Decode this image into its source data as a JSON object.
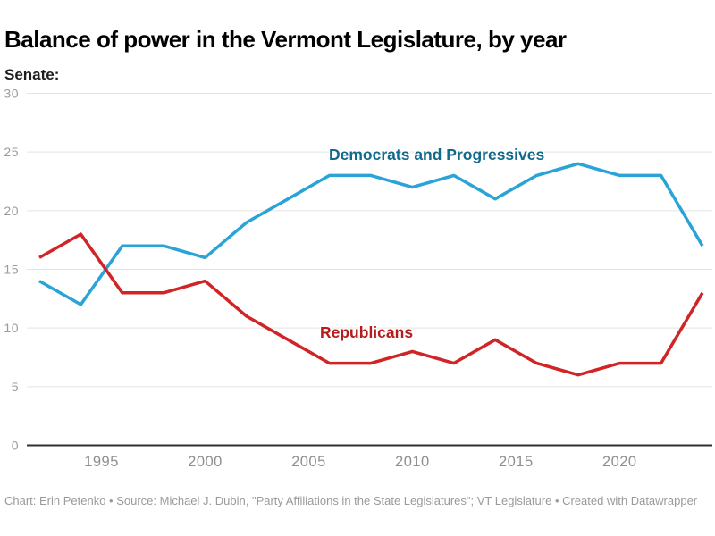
{
  "header": {
    "title": "Balance of power in the Vermont Legislature, by year",
    "subtitle": "Senate:"
  },
  "footer": {
    "attribution": "Chart: Erin Petenko • Source: Michael J. Dubin, \"Party Affiliations in the State Legislatures\"; VT Legislature • Created with Datawrapper"
  },
  "chart_data": {
    "type": "line",
    "title": "Balance of power in the Vermont Legislature, by year",
    "subtitle": "Senate:",
    "x": [
      1992,
      1994,
      1996,
      1998,
      2000,
      2002,
      2004,
      2006,
      2008,
      2010,
      2012,
      2014,
      2016,
      2018,
      2020,
      2022,
      2024
    ],
    "series": [
      {
        "name": "Democrats and Progressives",
        "values": [
          14,
          12,
          17,
          17,
          16,
          19,
          21,
          23,
          23,
          22,
          23,
          21,
          23,
          24,
          23,
          23,
          17
        ],
        "color": "#2aa3d7",
        "label_color": "#116a8c"
      },
      {
        "name": "Republicans",
        "values": [
          16,
          18,
          13,
          13,
          14,
          11,
          9,
          7,
          7,
          8,
          7,
          9,
          7,
          6,
          7,
          7,
          13
        ],
        "color": "#d02426",
        "label_color": "#b51c1c"
      }
    ],
    "x_ticks": [
      "1995",
      "2000",
      "2005",
      "2010",
      "2015",
      "2020"
    ],
    "y_ticks": [
      "0",
      "5",
      "10",
      "15",
      "20",
      "25",
      "30"
    ],
    "x_domain": [
      1992,
      2024
    ],
    "y_domain": [
      0,
      30
    ],
    "ylim": [
      0,
      30
    ],
    "grid": "horizontal",
    "legend_position": "inline-labels",
    "axis_color": "#303030",
    "gridline_color": "#e3e3e3"
  }
}
